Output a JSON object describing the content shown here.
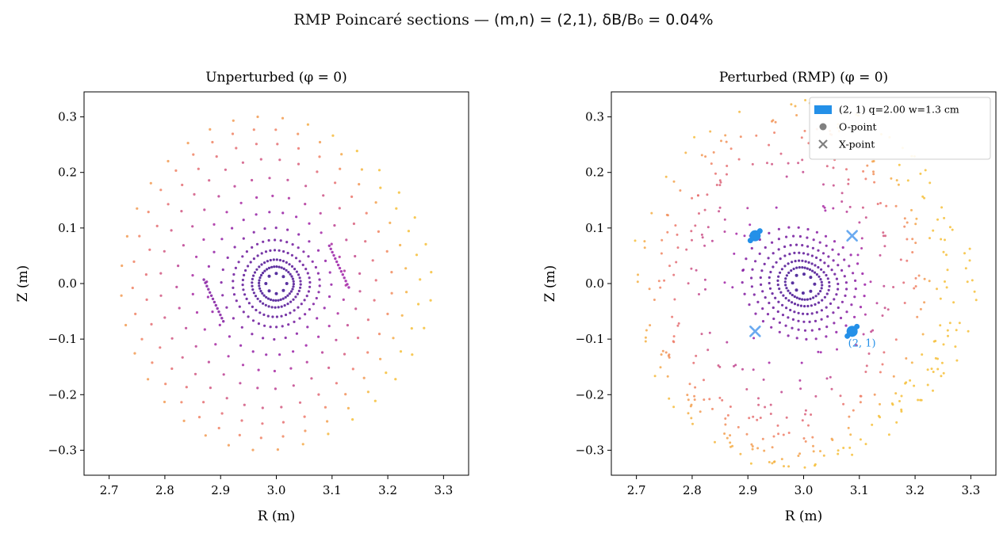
{
  "figure": {
    "title_text": "RMP Poincaré sections — ",
    "title_math": "(m,n) = (2,1),  δB/B₀ = 0.04%"
  },
  "colors": {
    "inner": "#2a0a8a",
    "mid": "#a020a8",
    "outer": "#ef7a6a",
    "edge": "#f6c03a",
    "island": "#2490e8",
    "xpoint": "#6aaaf0",
    "opoint_legend": "#808080"
  },
  "chart_data": [
    {
      "type": "scatter",
      "title": "Unperturbed  (φ = 0)",
      "xlabel": "R (m)",
      "ylabel": "Z (m)",
      "xlim": [
        2.655,
        3.345
      ],
      "ylim": [
        -0.345,
        0.345
      ],
      "xticks": [
        "2.7",
        "2.8",
        "2.9",
        "3.0",
        "3.1",
        "3.2",
        "3.3"
      ],
      "yticks": [
        "−0.3",
        "−0.2",
        "−0.1",
        "0.0",
        "0.1",
        "0.2",
        "0.3"
      ],
      "grid": false,
      "center": [
        3.0,
        0.0
      ],
      "surfaces": [
        {
          "r": 0.018,
          "n": 8
        },
        {
          "r": 0.03,
          "n": 40
        },
        {
          "r": 0.042,
          "n": 44
        },
        {
          "r": 0.058,
          "n": 44
        },
        {
          "r": 0.075,
          "n": 42
        },
        {
          "r": 0.095,
          "n": 28
        },
        {
          "r": 0.12,
          "n": 30
        },
        {
          "r": 0.145,
          "n": 30
        },
        {
          "r": 0.172,
          "n": 32
        },
        {
          "r": 0.2,
          "n": 36
        },
        {
          "r": 0.225,
          "n": 36
        },
        {
          "r": 0.248,
          "n": 38
        },
        {
          "r": 0.268,
          "n": 36
        }
      ],
      "streaks": [
        {
          "x": [
            2.87,
            2.905
          ],
          "y": [
            0.007,
            -0.068
          ]
        },
        {
          "x": [
            3.095,
            3.13
          ],
          "y": [
            0.068,
            -0.007
          ]
        }
      ]
    },
    {
      "type": "scatter",
      "title": "Perturbed (RMP)  (φ = 0)",
      "xlabel": "R (m)",
      "ylabel": "Z (m)",
      "xlim": [
        2.655,
        3.345
      ],
      "ylim": [
        -0.345,
        0.345
      ],
      "xticks": [
        "2.7",
        "2.8",
        "2.9",
        "3.0",
        "3.1",
        "3.2",
        "3.3"
      ],
      "yticks": [
        "−0.3",
        "−0.2",
        "−0.1",
        "0.0",
        "0.1",
        "0.2",
        "0.3"
      ],
      "grid": false,
      "legend_position": "top-right",
      "center": [
        3.0,
        0.0
      ],
      "surfaces": [
        {
          "r": 0.018,
          "n": 8
        },
        {
          "r": 0.03,
          "n": 36
        },
        {
          "r": 0.042,
          "n": 40
        },
        {
          "r": 0.056,
          "n": 40
        },
        {
          "r": 0.07,
          "n": 40
        },
        {
          "r": 0.085,
          "n": 40
        },
        {
          "r": 0.1,
          "n": 34
        }
      ],
      "chaotic_band": {
        "r_min": 0.1,
        "r_max": 0.3,
        "n": 430
      },
      "island": {
        "label": "(2,1)  q=2.00  w=1.3 cm",
        "annotation": "(2, 1)",
        "o_points": [
          {
            "R": 2.913,
            "Z": 0.086
          },
          {
            "R": 3.087,
            "Z": -0.086
          }
        ],
        "x_points": [
          {
            "R": 3.087,
            "Z": 0.086
          },
          {
            "R": 2.913,
            "Z": -0.086
          }
        ]
      },
      "legend": [
        {
          "label": "(2, 1)  q=2.00  w=1.3 cm",
          "marker": "patch"
        },
        {
          "label": "O-point",
          "marker": "circle"
        },
        {
          "label": "X-point",
          "marker": "x"
        }
      ]
    }
  ]
}
